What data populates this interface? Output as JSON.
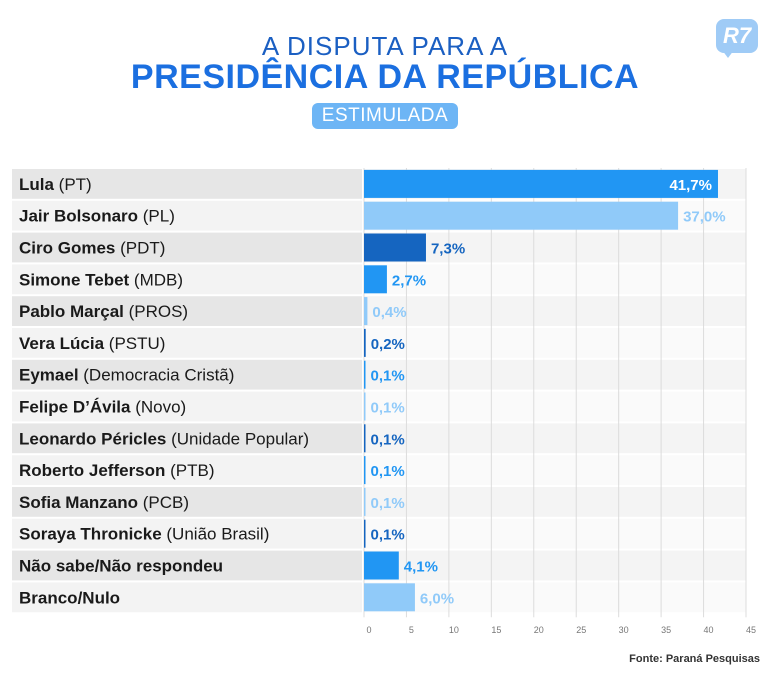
{
  "title_line1": "A DISPUTA PARA A",
  "title_line2": "PRESIDÊNCIA DA REPÚBLICA",
  "subtitle": "ESTIMULADA",
  "logo_text": "R7",
  "source": "Fonte: Paraná Pesquisas",
  "chart_data": {
    "type": "bar",
    "orientation": "horizontal",
    "title": "A DISPUTA PARA A PRESIDÊNCIA DA REPÚBLICA",
    "subtitle": "ESTIMULADA",
    "xlim": [
      0,
      45
    ],
    "xticks": [
      0,
      5,
      10,
      15,
      20,
      25,
      30,
      35,
      40,
      45
    ],
    "grid": true,
    "categories": [
      {
        "name": "Lula",
        "party": "(PT)"
      },
      {
        "name": "Jair Bolsonaro",
        "party": "(PL)"
      },
      {
        "name": "Ciro Gomes",
        "party": "(PDT)"
      },
      {
        "name": "Simone Tebet",
        "party": "(MDB)"
      },
      {
        "name": "Pablo Marçal",
        "party": "(PROS)"
      },
      {
        "name": "Vera Lúcia",
        "party": "(PSTU)"
      },
      {
        "name": "Eymael",
        "party": "(Democracia Cristã)"
      },
      {
        "name": "Felipe D’Ávila",
        "party": "(Novo)"
      },
      {
        "name": "Leonardo Péricles",
        "party": "(Unidade Popular)"
      },
      {
        "name": "Roberto Jefferson",
        "party": "(PTB)"
      },
      {
        "name": "Sofia Manzano",
        "party": "(PCB)"
      },
      {
        "name": "Soraya Thronicke",
        "party": "(União Brasil)"
      },
      {
        "name": "Não sabe/Não respondeu",
        "party": ""
      },
      {
        "name": "Branco/Nulo",
        "party": ""
      }
    ],
    "values": [
      41.7,
      37.0,
      7.3,
      2.7,
      0.4,
      0.2,
      0.1,
      0.1,
      0.1,
      0.1,
      0.1,
      0.1,
      4.1,
      6.0
    ],
    "value_labels": [
      "41,7%",
      "37,0%",
      "7,3%",
      "2,7%",
      "0,4%",
      "0,2%",
      "0,1%",
      "0,1%",
      "0,1%",
      "0,1%",
      "0,1%",
      "0,1%",
      "4,1%",
      "6,0%"
    ],
    "bar_colors": [
      "#2196f3",
      "#90caf9",
      "#1565c0",
      "#2196f3",
      "#90caf9",
      "#1565c0",
      "#2196f3",
      "#90caf9",
      "#1565c0",
      "#2196f3",
      "#90caf9",
      "#1565c0",
      "#2196f3",
      "#90caf9"
    ],
    "label_inside_first": true
  }
}
